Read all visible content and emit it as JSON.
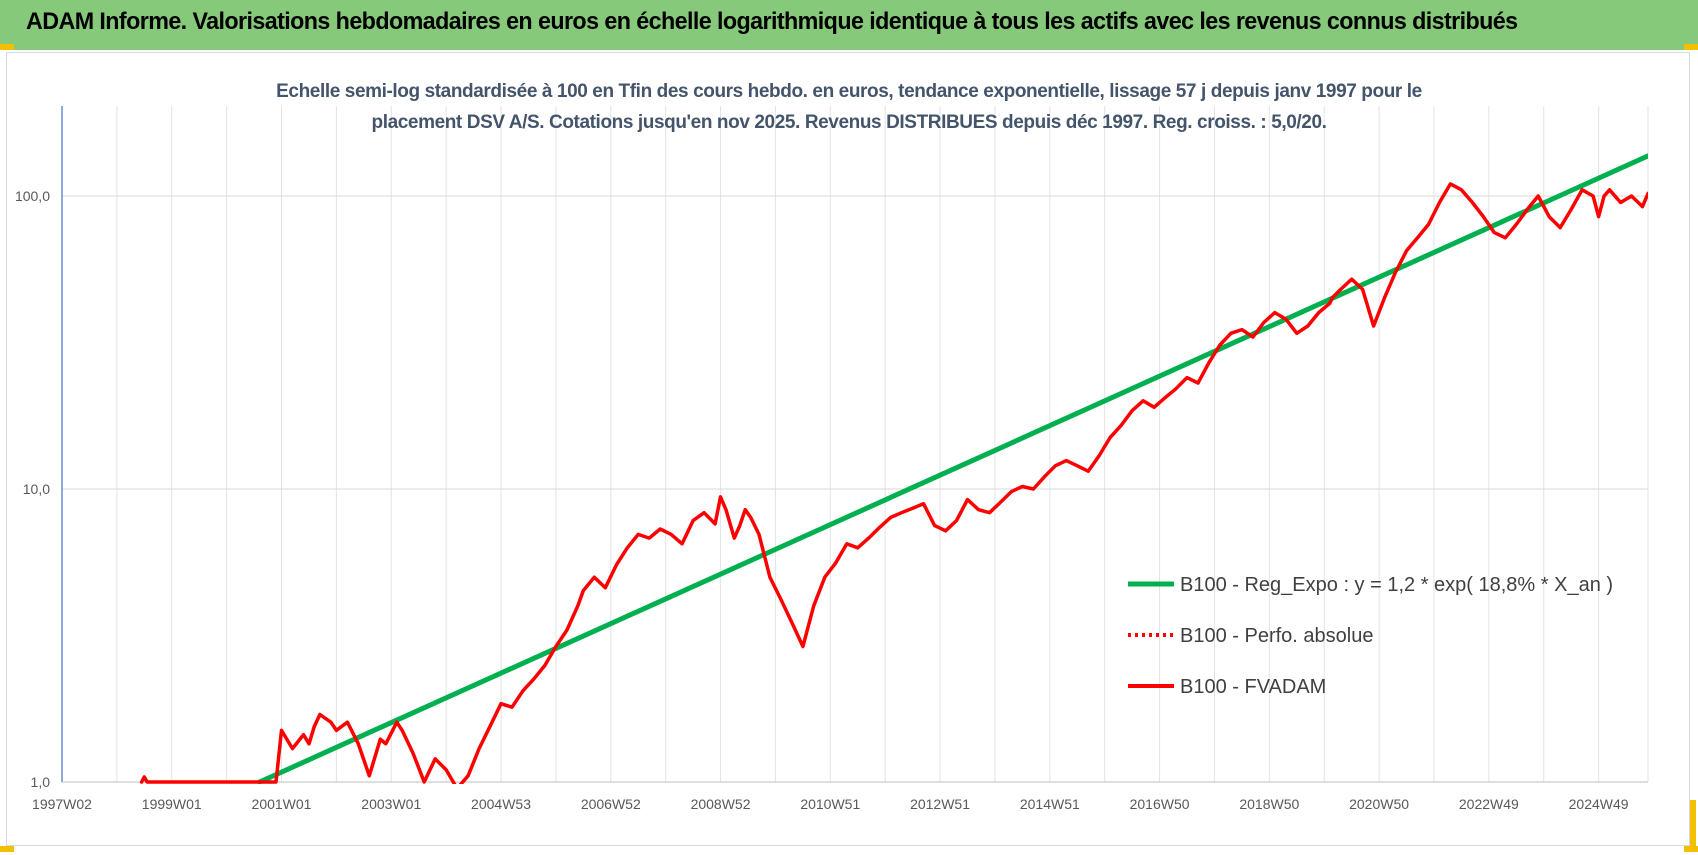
{
  "header": {
    "title": "ADAM Informe. Valorisations hebdomadaires en euros en échelle logarithmique identique à tous les actifs avec les revenus connus distribués"
  },
  "chart_data": {
    "type": "line",
    "title_line1": "Echelle semi-log standardisée à 100 en Tfin des cours hebdo. en euros, tendance exponentielle, lissage 57 j depuis janv 1997 pour le",
    "title_line2": "placement DSV A/S. Cotations jusqu'en nov 2025. Revenus DISTRIBUES depuis déc 1997. Reg. croiss. : 5,0/20.",
    "xlabel": "",
    "ylabel": "",
    "y_scale": "log",
    "ylim": [
      1,
      180
    ],
    "xlim": [
      1997.0,
      2025.9
    ],
    "grid": true,
    "legend_position": "right",
    "y_ticks": [
      {
        "value": 1,
        "label": "1,0"
      },
      {
        "value": 10,
        "label": "10,0"
      },
      {
        "value": 100,
        "label": "100,0"
      }
    ],
    "x_ticks": [
      {
        "value": 1997.0,
        "label": "1997W02"
      },
      {
        "value": 1999.0,
        "label": "1999W01"
      },
      {
        "value": 2001.0,
        "label": "2001W01"
      },
      {
        "value": 2003.0,
        "label": "2003W01"
      },
      {
        "value": 2005.0,
        "label": "2004W53"
      },
      {
        "value": 2007.0,
        "label": "2006W52"
      },
      {
        "value": 2009.0,
        "label": "2008W52"
      },
      {
        "value": 2011.0,
        "label": "2010W51"
      },
      {
        "value": 2013.0,
        "label": "2012W51"
      },
      {
        "value": 2015.0,
        "label": "2014W51"
      },
      {
        "value": 2017.0,
        "label": "2016W50"
      },
      {
        "value": 2019.0,
        "label": "2018W50"
      },
      {
        "value": 2021.0,
        "label": "2020W50"
      },
      {
        "value": 2023.0,
        "label": "2022W49"
      },
      {
        "value": 2025.0,
        "label": "2024W49"
      }
    ],
    "series": [
      {
        "name": "B100 - Reg_Expo : y = 1,2 * exp( 18,8% *  X_an )",
        "color": "#00b050",
        "style": "solid",
        "x": [
          2000.6,
          2025.9
        ],
        "values": [
          1.0,
          137
        ]
      },
      {
        "name": "B100 - Perfo. absolue",
        "color": "#ff0000",
        "style": "dotted",
        "x": [],
        "values": []
      },
      {
        "name": "B100 - FVADAM",
        "color": "#ff0000",
        "style": "solid",
        "x": [
          1998.45,
          1998.5,
          1998.55,
          2000.9,
          2001.0,
          2001.2,
          2001.4,
          2001.5,
          2001.6,
          2001.7,
          2001.9,
          2002.0,
          2002.2,
          2002.4,
          2002.6,
          2002.8,
          2002.9,
          2003.1,
          2003.2,
          2003.4,
          2003.6,
          2003.8,
          2004.0,
          2004.2,
          2004.4,
          2004.6,
          2004.8,
          2005.0,
          2005.2,
          2005.4,
          2005.6,
          2005.8,
          2006.0,
          2006.2,
          2006.4,
          2006.5,
          2006.7,
          2006.9,
          2007.1,
          2007.3,
          2007.5,
          2007.7,
          2007.9,
          2008.1,
          2008.3,
          2008.5,
          2008.7,
          2008.9,
          2009.0,
          2009.1,
          2009.25,
          2009.35,
          2009.45,
          2009.55,
          2009.7,
          2009.9,
          2010.1,
          2010.3,
          2010.5,
          2010.7,
          2010.9,
          2011.1,
          2011.3,
          2011.5,
          2011.7,
          2011.9,
          2012.1,
          2012.3,
          2012.5,
          2012.7,
          2012.9,
          2013.1,
          2013.3,
          2013.5,
          2013.7,
          2013.9,
          2014.1,
          2014.3,
          2014.5,
          2014.7,
          2014.9,
          2015.1,
          2015.3,
          2015.5,
          2015.7,
          2015.9,
          2016.1,
          2016.3,
          2016.5,
          2016.7,
          2016.9,
          2017.1,
          2017.3,
          2017.5,
          2017.7,
          2017.9,
          2018.1,
          2018.3,
          2018.5,
          2018.7,
          2018.9,
          2019.1,
          2019.3,
          2019.5,
          2019.7,
          2019.9,
          2020.1,
          2020.15,
          2020.3,
          2020.5,
          2020.7,
          2020.9,
          2021.1,
          2021.3,
          2021.5,
          2021.7,
          2021.9,
          2022.1,
          2022.3,
          2022.5,
          2022.7,
          2022.9,
          2023.1,
          2023.3,
          2023.5,
          2023.7,
          2023.9,
          2024.1,
          2024.3,
          2024.5,
          2024.7,
          2024.9,
          2025.0,
          2025.1,
          2025.2,
          2025.4,
          2025.6,
          2025.8,
          2025.9
        ],
        "values": [
          1.0,
          1.04,
          1.0,
          1.0,
          1.5,
          1.3,
          1.45,
          1.35,
          1.55,
          1.7,
          1.6,
          1.5,
          1.6,
          1.35,
          1.05,
          1.4,
          1.35,
          1.6,
          1.5,
          1.25,
          1.0,
          1.2,
          1.1,
          0.95,
          1.05,
          1.3,
          1.55,
          1.85,
          1.8,
          2.05,
          2.25,
          2.5,
          2.9,
          3.3,
          4.0,
          4.5,
          5.0,
          4.6,
          5.5,
          6.3,
          7.0,
          6.8,
          7.3,
          7.0,
          6.5,
          7.8,
          8.3,
          7.6,
          9.4,
          8.5,
          6.8,
          7.5,
          8.5,
          8.0,
          7.0,
          5.0,
          4.2,
          3.5,
          2.9,
          4.0,
          5.0,
          5.6,
          6.5,
          6.3,
          6.8,
          7.4,
          8.0,
          8.3,
          8.6,
          8.9,
          7.5,
          7.2,
          7.8,
          9.2,
          8.5,
          8.3,
          9.0,
          9.8,
          10.2,
          10.0,
          11.0,
          12.0,
          12.5,
          12.0,
          11.5,
          13.0,
          15.0,
          16.5,
          18.5,
          20.0,
          19.0,
          20.5,
          22.0,
          24.0,
          23.0,
          27.0,
          31.0,
          34.0,
          35.0,
          33.0,
          37.0,
          40.0,
          38.0,
          34.0,
          36.0,
          40.0,
          43.0,
          45.0,
          48.0,
          52.0,
          48.0,
          36.0,
          45.0,
          55.0,
          65.0,
          72.0,
          80.0,
          95.0,
          110.0,
          105.0,
          95.0,
          85.0,
          75.0,
          72.0,
          80.0,
          90.0,
          100.0,
          85.0,
          78.0,
          90.0,
          105.0,
          100.0,
          85.0,
          100.0,
          105.0,
          95.0,
          100.0,
          92.0,
          102.0
        ]
      }
    ]
  }
}
